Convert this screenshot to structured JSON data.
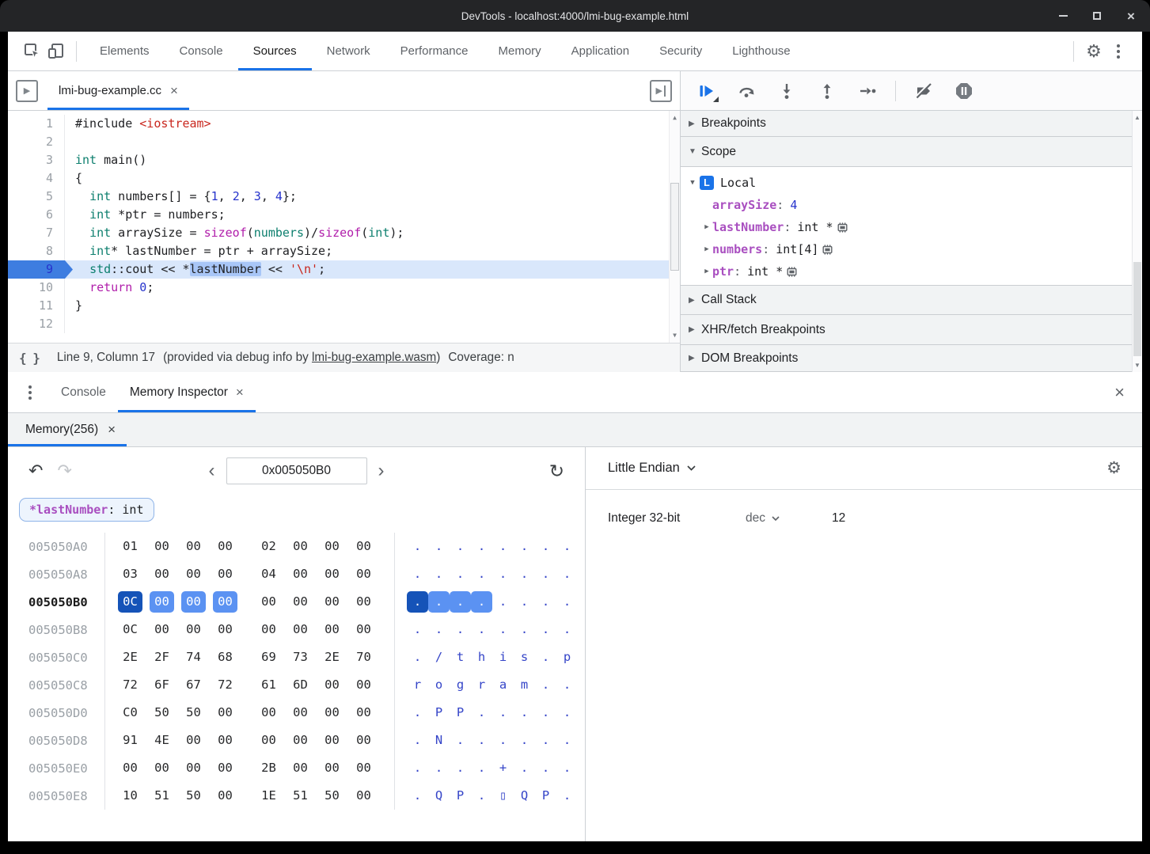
{
  "window": {
    "title": "DevTools - localhost:4000/lmi-bug-example.html"
  },
  "icons": {
    "collapsed": "▶",
    "expanded": "▼",
    "disclosure": "▶",
    "up_arrow": "▲",
    "down_arrow": "▼",
    "undo": "↶",
    "redo": "↷",
    "refresh": "↻",
    "prev": "‹",
    "next": "›",
    "gear": "⚙",
    "close": "×",
    "braces": "{ }"
  },
  "toolbar": {
    "tabs": [
      "Elements",
      "Console",
      "Sources",
      "Network",
      "Performance",
      "Memory",
      "Application",
      "Security",
      "Lighthouse"
    ],
    "active_tab": "Sources"
  },
  "sources": {
    "file_tab": "lmi-bug-example.cc",
    "code": [
      {
        "n": "1",
        "seg": [
          [
            "#include ",
            "pl"
          ],
          [
            "<iostream>",
            "str"
          ]
        ]
      },
      {
        "n": "2",
        "seg": []
      },
      {
        "n": "3",
        "seg": [
          [
            "int",
            "kw"
          ],
          [
            " main()",
            "pl"
          ]
        ]
      },
      {
        "n": "4",
        "seg": [
          [
            "{",
            "pl"
          ]
        ]
      },
      {
        "n": "5",
        "seg": [
          [
            "  ",
            "pl"
          ],
          [
            "int",
            "kw"
          ],
          [
            " numbers[] = {",
            "pl"
          ],
          [
            "1",
            "num"
          ],
          [
            ", ",
            "pl"
          ],
          [
            "2",
            "num"
          ],
          [
            ", ",
            "pl"
          ],
          [
            "3",
            "num"
          ],
          [
            ", ",
            "pl"
          ],
          [
            "4",
            "num"
          ],
          [
            "};",
            "pl"
          ]
        ]
      },
      {
        "n": "6",
        "seg": [
          [
            "  ",
            "pl"
          ],
          [
            "int",
            "kw"
          ],
          [
            " *ptr = numbers;",
            "pl"
          ]
        ]
      },
      {
        "n": "7",
        "seg": [
          [
            "  ",
            "pl"
          ],
          [
            "int",
            "kw"
          ],
          [
            " arraySize = ",
            "pl"
          ],
          [
            "sizeof",
            "mg"
          ],
          [
            "(",
            "pl"
          ],
          [
            "numbers",
            "kw"
          ],
          [
            ")/",
            "pl"
          ],
          [
            "sizeof",
            "mg"
          ],
          [
            "(",
            "pl"
          ],
          [
            "int",
            "kw"
          ],
          [
            ");",
            "pl"
          ]
        ]
      },
      {
        "n": "8",
        "seg": [
          [
            "  ",
            "pl"
          ],
          [
            "int",
            "kw"
          ],
          [
            "* lastNumber = ptr + arraySize;",
            "pl"
          ]
        ]
      },
      {
        "n": "9",
        "paused": true,
        "seg": [
          [
            "  ",
            "pl"
          ],
          [
            "std",
            "kw"
          ],
          [
            "::cout << *",
            "pl"
          ],
          [
            "lastNumber",
            "tok"
          ],
          [
            " << ",
            "pl"
          ],
          [
            "'\\n'",
            "str"
          ],
          [
            ";",
            "pl"
          ]
        ]
      },
      {
        "n": "10",
        "seg": [
          [
            "  ",
            "pl"
          ],
          [
            "return",
            "mg"
          ],
          [
            " ",
            "pl"
          ],
          [
            "0",
            "num"
          ],
          [
            ";",
            "pl"
          ]
        ]
      },
      {
        "n": "11",
        "seg": [
          [
            "}",
            "pl"
          ]
        ]
      },
      {
        "n": "12",
        "seg": []
      }
    ],
    "status": {
      "position": "Line 9, Column 17",
      "provided_prefix": "(provided via debug info by ",
      "provided_link": "lmi-bug-example.wasm",
      "provided_suffix": ")",
      "coverage": "Coverage: n"
    }
  },
  "debugger": {
    "sections": [
      "Breakpoints",
      "Scope",
      "Call Stack",
      "XHR/fetch Breakpoints",
      "DOM Breakpoints"
    ],
    "scope_badge": "L",
    "scope_name": "Local",
    "variables": [
      {
        "name": "arraySize",
        "value": "4",
        "vclass": "v-num",
        "expandable": false,
        "mem": false
      },
      {
        "name": "lastNumber",
        "value": "int *",
        "vclass": "",
        "expandable": true,
        "mem": true
      },
      {
        "name": "numbers",
        "value": "int[4]",
        "vclass": "",
        "expandable": true,
        "mem": true
      },
      {
        "name": "ptr",
        "value": "int *",
        "vclass": "",
        "expandable": true,
        "mem": true
      }
    ]
  },
  "drawer": {
    "tabs": [
      "Console",
      "Memory Inspector"
    ],
    "active_tab": "Memory Inspector",
    "memory_tab": "Memory(256)"
  },
  "memory": {
    "address": "0x005050B0",
    "highlight_chip": {
      "name": "*lastNumber",
      "type": ": int"
    },
    "rows": [
      {
        "addr": "005050A0",
        "bytes": [
          "01",
          "00",
          "00",
          "00",
          "02",
          "00",
          "00",
          "00"
        ],
        "ascii": [
          ".",
          ".",
          ".",
          ".",
          ".",
          ".",
          ".",
          "."
        ]
      },
      {
        "addr": "005050A8",
        "bytes": [
          "03",
          "00",
          "00",
          "00",
          "04",
          "00",
          "00",
          "00"
        ],
        "ascii": [
          ".",
          ".",
          ".",
          ".",
          ".",
          ".",
          ".",
          "."
        ]
      },
      {
        "addr": "005050B0",
        "selected": true,
        "strong": [
          0
        ],
        "light": [
          1,
          2,
          3
        ],
        "bytes": [
          "0C",
          "00",
          "00",
          "00",
          "00",
          "00",
          "00",
          "00"
        ],
        "ascii": [
          ".",
          ".",
          ".",
          ".",
          ".",
          ".",
          ".",
          "."
        ]
      },
      {
        "addr": "005050B8",
        "bytes": [
          "0C",
          "00",
          "00",
          "00",
          "00",
          "00",
          "00",
          "00"
        ],
        "ascii": [
          ".",
          ".",
          ".",
          ".",
          ".",
          ".",
          ".",
          "."
        ]
      },
      {
        "addr": "005050C0",
        "bytes": [
          "2E",
          "2F",
          "74",
          "68",
          "69",
          "73",
          "2E",
          "70"
        ],
        "ascii": [
          ".",
          "/",
          "t",
          "h",
          "i",
          "s",
          ".",
          "p"
        ]
      },
      {
        "addr": "005050C8",
        "bytes": [
          "72",
          "6F",
          "67",
          "72",
          "61",
          "6D",
          "00",
          "00"
        ],
        "ascii": [
          "r",
          "o",
          "g",
          "r",
          "a",
          "m",
          ".",
          "."
        ]
      },
      {
        "addr": "005050D0",
        "bytes": [
          "C0",
          "50",
          "50",
          "00",
          "00",
          "00",
          "00",
          "00"
        ],
        "ascii": [
          ".",
          "P",
          "P",
          ".",
          ".",
          ".",
          ".",
          "."
        ]
      },
      {
        "addr": "005050D8",
        "bytes": [
          "91",
          "4E",
          "00",
          "00",
          "00",
          "00",
          "00",
          "00"
        ],
        "ascii": [
          ".",
          "N",
          ".",
          ".",
          ".",
          ".",
          ".",
          "."
        ]
      },
      {
        "addr": "005050E0",
        "bytes": [
          "00",
          "00",
          "00",
          "00",
          "2B",
          "00",
          "00",
          "00"
        ],
        "ascii": [
          ".",
          ".",
          ".",
          ".",
          "+",
          ".",
          ".",
          "."
        ]
      },
      {
        "addr": "005050E8",
        "bytes": [
          "10",
          "51",
          "50",
          "00",
          "1E",
          "51",
          "50",
          "00"
        ],
        "ascii": [
          ".",
          "Q",
          "P",
          ".",
          "▯",
          "Q",
          "P",
          "."
        ]
      }
    ],
    "interpreter": {
      "endianness": "Little Endian",
      "type_label": "Integer 32-bit",
      "format": "dec",
      "value": "12"
    }
  },
  "colors": {
    "accent": "#1a73e8",
    "byte_selected": "#1553b8",
    "byte_highlight": "#5b92f2"
  }
}
